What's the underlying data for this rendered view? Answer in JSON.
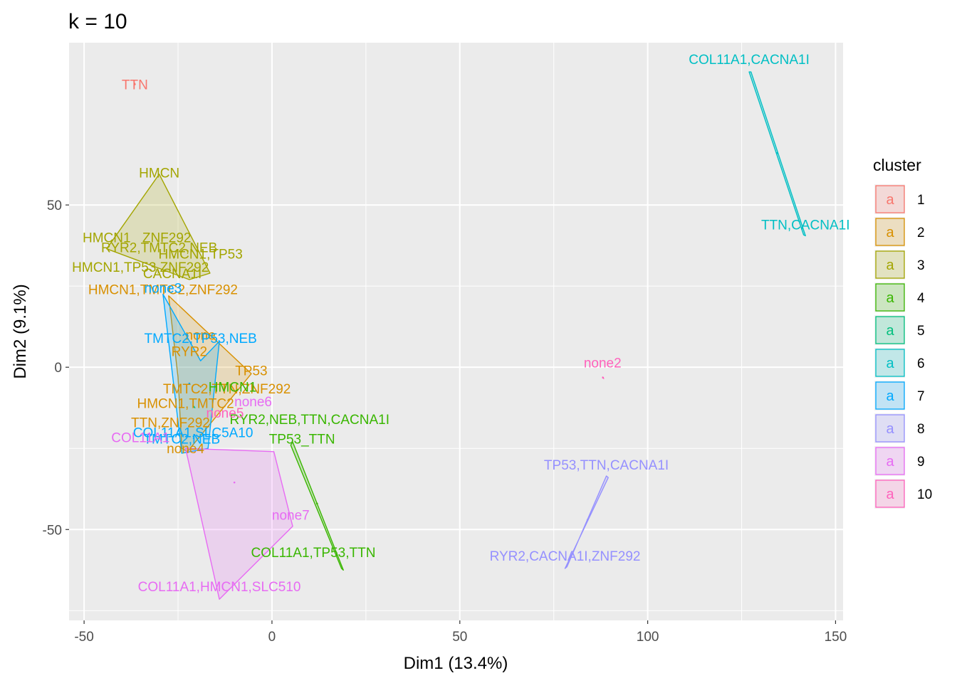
{
  "chart_data": {
    "type": "scatter",
    "title": "k = 10",
    "xlabel": "Dim1 (13.4%)",
    "ylabel": "Dim2 (9.1%)",
    "xlim": [
      -54,
      152
    ],
    "ylim": [
      -78,
      100
    ],
    "xticks": [
      -50,
      0,
      50,
      100,
      150
    ],
    "yticks": [
      -50,
      0,
      50
    ],
    "grid": true,
    "legend": {
      "title": "cluster",
      "position": "right",
      "key_glyph": "a"
    },
    "clusters": [
      {
        "id": "1",
        "color": "#F8766D",
        "hull": [
          [
            -36.5,
            87.5
          ],
          [
            -36.5,
            87.0
          ]
        ],
        "centroid": [
          -36.5,
          87.2
        ],
        "points": [
          {
            "label": "TTN",
            "x": -36.5,
            "y": 87.2
          }
        ]
      },
      {
        "id": "2",
        "color": "#D89000",
        "hull": [
          [
            -27.5,
            22
          ],
          [
            -5.5,
            -2
          ],
          [
            -22.5,
            -26
          ],
          [
            -24,
            -25
          ],
          [
            -25,
            -3
          ]
        ],
        "centroid": [
          -19,
          -6
        ],
        "points": [
          {
            "label": "HMCN1,TMTC2,ZNF292",
            "x": -29,
            "y": 24
          },
          {
            "label": "none",
            "x": -19,
            "y": 10
          },
          {
            "label": "RYR2",
            "x": -22,
            "y": 5
          },
          {
            "label": "TP53",
            "x": -5.5,
            "y": -1
          },
          {
            "label": "TMTC2,TTN,ZNF292",
            "x": -12,
            "y": -6.5
          },
          {
            "label": "HMCN1,TMTC2",
            "x": -23,
            "y": -11
          },
          {
            "label": "TTN,ZNF292",
            "x": -27,
            "y": -17
          },
          {
            "label": "none4",
            "x": -23,
            "y": -25
          }
        ]
      },
      {
        "id": "3",
        "color": "#A3A500",
        "hull": [
          [
            -30,
            59.5
          ],
          [
            -16.5,
            29
          ],
          [
            -22,
            27
          ],
          [
            -44,
            36.5
          ]
        ],
        "centroid": [
          -26,
          34
        ],
        "points": [
          {
            "label": "HMCN",
            "x": -30,
            "y": 60
          },
          {
            "label": "HMCN1",
            "x": -44,
            "y": 40
          },
          {
            "label": "RYR2,TMTC2,NEB",
            "x": -30,
            "y": 37
          },
          {
            "label": "ZNF292",
            "x": -28,
            "y": 40
          },
          {
            "label": "HMCN1,TP53",
            "x": -19,
            "y": 35
          },
          {
            "label": "HMCN1,TP53,ZNF292",
            "x": -35,
            "y": 31
          },
          {
            "label": "CACNA1I",
            "x": -26.5,
            "y": 29
          }
        ]
      },
      {
        "id": "4",
        "color": "#39B600",
        "hull": [
          [
            5.5,
            -23
          ],
          [
            19,
            -62.5
          ],
          [
            18.5,
            -62
          ],
          [
            5,
            -24
          ]
        ],
        "centroid": [
          12,
          -42
        ],
        "points": [
          {
            "label": "HMCN1",
            "x": -10.5,
            "y": -6
          },
          {
            "label": "RYR2,NEB,TTN,CACNA1I",
            "x": 10,
            "y": -16
          },
          {
            "label": "TP53_TTN",
            "x": 8,
            "y": -22
          },
          {
            "label": "COL11A1,TP53,TTN",
            "x": 11,
            "y": -57
          }
        ]
      },
      {
        "id": "5",
        "color": "#00BF7D",
        "hull": [
          [
            -21,
            -12
          ],
          [
            -20.5,
            -12.5
          ]
        ],
        "centroid": [
          -20.8,
          -12.2
        ],
        "points": []
      },
      {
        "id": "6",
        "color": "#00BFC4",
        "hull": [
          [
            127.5,
            91
          ],
          [
            142,
            40.5
          ],
          [
            141.5,
            40.8
          ],
          [
            127,
            91
          ]
        ],
        "centroid": [
          134.5,
          66
        ],
        "points": [
          {
            "label": "COL11A1,CACNA1I",
            "x": 127,
            "y": 95
          },
          {
            "label": "TTN,CACNA1I",
            "x": 142,
            "y": 44
          }
        ]
      },
      {
        "id": "7",
        "color": "#00A9FF",
        "hull": [
          [
            -29,
            22.5
          ],
          [
            -19,
            2
          ],
          [
            -14,
            8
          ],
          [
            -17,
            -25
          ],
          [
            -24,
            -26.5
          ]
        ],
        "centroid": [
          -22,
          -5
        ],
        "points": [
          {
            "label": "none3",
            "x": -29,
            "y": 24.5
          },
          {
            "label": "TMTC2,TP53,NEB",
            "x": -19,
            "y": 9
          },
          {
            "label": "COL11A1,SLC5A10",
            "x": -21,
            "y": -20
          },
          {
            "label": "TMTC2,NEB",
            "x": -24,
            "y": -22
          }
        ]
      },
      {
        "id": "8",
        "color": "#9590FF",
        "hull": [
          [
            89.5,
            -34
          ],
          [
            78,
            -62
          ],
          [
            78.5,
            -61.5
          ],
          [
            89,
            -33.5
          ]
        ],
        "centroid": [
          84,
          -47
        ],
        "points": [
          {
            "label": "TP53,TTN,CACNA1I",
            "x": 89,
            "y": -30
          },
          {
            "label": "RYR2,CACNA1I,ZNF292",
            "x": 78,
            "y": -58
          }
        ]
      },
      {
        "id": "9",
        "color": "#E76BF3",
        "hull": [
          [
            -23,
            -25
          ],
          [
            0.5,
            -26
          ],
          [
            5.5,
            -49
          ],
          [
            -14,
            -71.5
          ]
        ],
        "centroid": [
          -10,
          -35.5
        ],
        "points": [
          {
            "label": "none6",
            "x": -5,
            "y": -10.5
          },
          {
            "label": "COL11A1",
            "x": -35,
            "y": -21.5
          },
          {
            "label": "none7",
            "x": 5,
            "y": -45.5
          },
          {
            "label": "COL11A1,HMCN1,SLC510",
            "x": -14,
            "y": -67.5
          }
        ]
      },
      {
        "id": "10",
        "color": "#FF62BC",
        "hull": [
          [
            88,
            -3
          ],
          [
            88.3,
            -3.5
          ]
        ],
        "centroid": [
          88.1,
          -3.2
        ],
        "points": [
          {
            "label": "none2",
            "x": 88,
            "y": 1.5
          },
          {
            "label": "none5",
            "x": -12.5,
            "y": -14
          }
        ]
      }
    ]
  }
}
